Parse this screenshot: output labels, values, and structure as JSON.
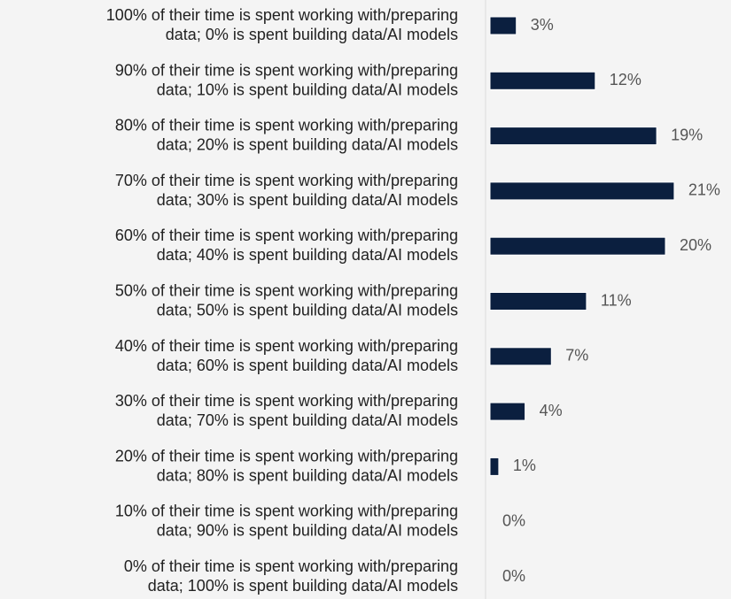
{
  "chart_data": {
    "type": "barh",
    "categories": [
      "100% of their time is spent working with/preparing data; 0% is spent building data/AI models",
      "90% of their time is spent working with/preparing data; 10% is spent building data/AI models",
      "80% of their time is spent working with/preparing data; 20% is spent building data/AI models",
      "70% of their time is spent working with/preparing data; 30% is spent building data/AI models",
      "60% of their time is spent working with/preparing data; 40% is spent building data/AI models",
      "50% of their time is spent working with/preparing data; 50% is spent building data/AI models",
      "40% of their time is spent working with/preparing data; 60% is spent building data/AI models",
      "30% of their time is spent working with/preparing data; 70% is spent building data/AI models",
      "20% of their time is spent working with/preparing data; 80% is spent building data/AI models",
      "10% of their time is spent working with/preparing data; 90% is spent building data/AI models",
      "0% of their time is spent working with/preparing data; 100% is spent building data/AI models"
    ],
    "values": [
      3,
      12,
      19,
      21,
      20,
      11,
      7,
      4,
      1,
      0,
      0
    ],
    "value_labels": [
      "3%",
      "12%",
      "19%",
      "21%",
      "20%",
      "11%",
      "7%",
      "4%",
      "1%",
      "0%",
      "0%"
    ],
    "color": "#0b1f3f"
  }
}
